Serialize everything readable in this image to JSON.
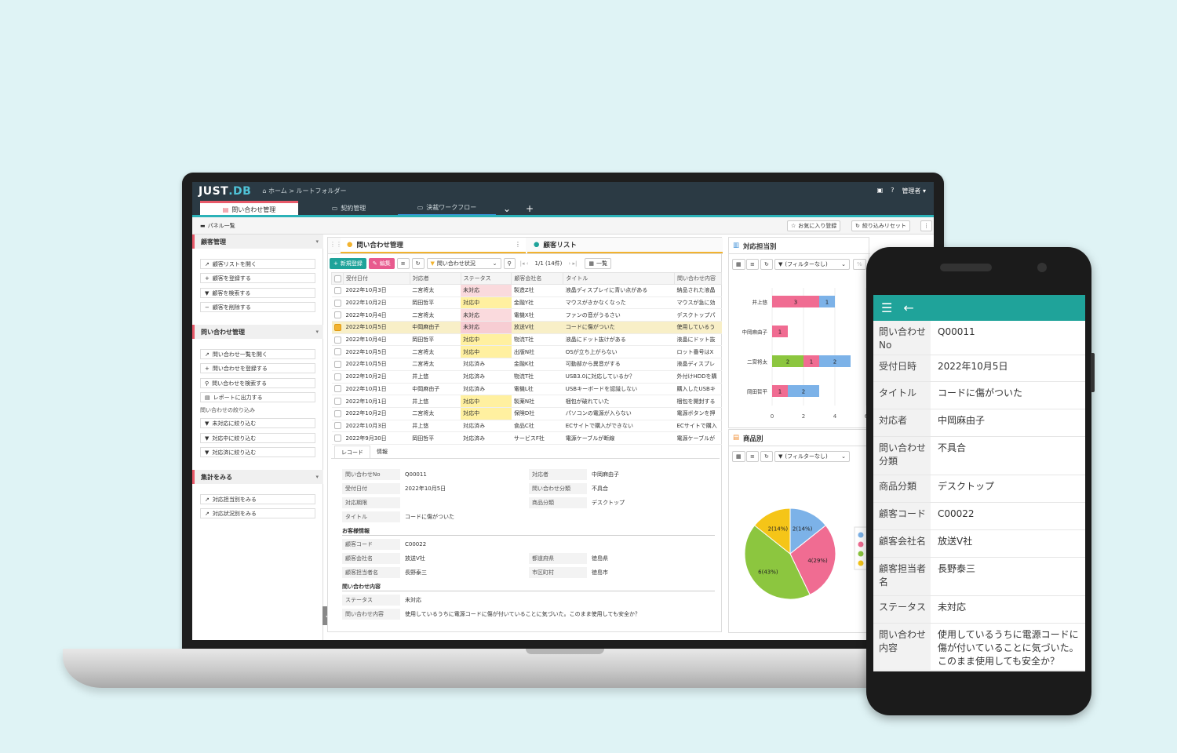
{
  "app": {
    "logo_prefix": "JUST",
    "logo_suffix": ".DB",
    "breadcrumb": "ホーム > ルートフォルダー",
    "user": "管理者"
  },
  "tabs": [
    {
      "label": "問い合わせ管理"
    },
    {
      "label": "契約管理"
    },
    {
      "label": "決裁ワークフロー"
    }
  ],
  "toolbar": {
    "panel_list": "パネル一覧",
    "favorite": "お気に入り登録",
    "reset": "絞り込みリセット"
  },
  "sidebar": {
    "sections": [
      {
        "title": "顧客管理",
        "items": [
          "顧客リストを開く",
          "顧客を登録する",
          "顧客を検索する",
          "顧客を削除する"
        ]
      },
      {
        "title": "問い合わせ管理",
        "items": [
          "問い合わせ一覧を開く",
          "問い合わせを登録する",
          "問い合わせを検索する",
          "レポートに出力する"
        ],
        "filter_label": "問い合わせの絞り込み",
        "filters": [
          "未対応に絞り込む",
          "対応中に絞り込む",
          "対応済に絞り込む"
        ]
      },
      {
        "title": "集計をみる",
        "items": [
          "対応担当別をみる",
          "対応状況別をみる"
        ]
      }
    ]
  },
  "main": {
    "tab1": "問い合わせ管理",
    "tab2": "顧客リスト",
    "new_btn": "新規登録",
    "edit_btn": "編集",
    "filter_select": "問い合わせ状況",
    "paging": "1/1 (14件)",
    "view_select": "一覧",
    "columns": [
      "受付日付",
      "対応者",
      "ステータス",
      "顧客会社名",
      "タイトル",
      "問い合わせ内容"
    ],
    "rows": [
      [
        "2022年10月3日",
        "二宮将太",
        "未対応",
        "製造Z社",
        "液晶ディスプレイに青い点がある",
        "納品された液晶"
      ],
      [
        "2022年10月2日",
        "岡田哲平",
        "対応中",
        "金融Y社",
        "マウスがきかなくなった",
        "マウスが急に効"
      ],
      [
        "2022年10月4日",
        "二宮将太",
        "未対応",
        "電機X社",
        "ファンの音がうるさい",
        "デスクトップパ"
      ],
      [
        "2022年10月5日",
        "中岡麻由子",
        "未対応",
        "放送V社",
        "コードに傷がついた",
        "使用しているう"
      ],
      [
        "2022年10月4日",
        "岡田哲平",
        "対応中",
        "物流T社",
        "液晶にドット抜けがある",
        "液晶にドット抜"
      ],
      [
        "2022年10月5日",
        "二宮将太",
        "対応中",
        "出版N社",
        "OSが立ち上がらない",
        "ロット番号はX"
      ],
      [
        "2022年10月5日",
        "二宮将太",
        "対応済み",
        "金融K社",
        "可動部から異音がする",
        "液晶ディスプレ"
      ],
      [
        "2022年10月2日",
        "井上悠",
        "対応済み",
        "物流T社",
        "USB3.0に対応しているか？",
        "外付けHDDを購"
      ],
      [
        "2022年10月1日",
        "中岡麻由子",
        "対応済み",
        "電機L社",
        "USBキーボードを認識しない",
        "購入したUSBキ"
      ],
      [
        "2022年10月1日",
        "井上悠",
        "対応中",
        "製薬N社",
        "梱包が破れていた",
        "梱包を開封する"
      ],
      [
        "2022年10月2日",
        "二宮将太",
        "対応中",
        "保険D社",
        "パソコンの電源が入らない",
        "電源ボタンを押"
      ],
      [
        "2022年10月3日",
        "井上悠",
        "対応済み",
        "食品C社",
        "ECサイトで購入ができない",
        "ECサイトで購入"
      ],
      [
        "2022年9月30日",
        "岡田哲平",
        "対応済み",
        "サービスF社",
        "電源ケーブルが断線",
        "電源ケーブルが"
      ]
    ],
    "detail": {
      "tab_record": "レコード",
      "tab_info": "情報",
      "inquiry_no_label": "問い合わせNo",
      "inquiry_no": "Q00011",
      "accept_date_label": "受付日付",
      "accept_date": "2022年10月5日",
      "deadline_label": "対応期限",
      "title_label": "タイトル",
      "title": "コードに傷がついた",
      "handler_label": "対応者",
      "handler": "中岡麻由子",
      "category_label": "問い合わせ分類",
      "category": "不具合",
      "product_label": "商品分類",
      "product": "デスクトップ",
      "customer_section": "お客様情報",
      "customer_code_label": "顧客コード",
      "customer_code": "C00022",
      "company_label": "顧客会社名",
      "company": "放送V社",
      "contact_label": "顧客担当者名",
      "contact": "長野泰三",
      "pref_label": "都道府県",
      "pref": "徳島県",
      "city_label": "市区町村",
      "city": "徳島市",
      "content_section": "問い合わせ内容",
      "status_label": "ステータス",
      "status": "未対応",
      "content_label": "問い合わせ内容",
      "content": "使用しているうちに電源コードに傷が付いていることに気づいた。このまま使用しても安全か？"
    }
  },
  "bar_panel": {
    "title": "対応担当別",
    "filter": "(フィルターなし)",
    "chart_data": {
      "type": "bar",
      "orientation": "horizontal",
      "stacked": true,
      "categories": [
        "井上悠",
        "中岡麻由子",
        "二宮将太",
        "岡田哲平"
      ],
      "series": [
        {
          "values": [
            0,
            0,
            2,
            0
          ],
          "color": "#8cc63f"
        },
        {
          "values": [
            3,
            1,
            1,
            1
          ],
          "color": "#f06c92"
        },
        {
          "values": [
            1,
            0,
            2,
            2
          ],
          "color": "#7cb2e8"
        }
      ],
      "ticks": [
        "0",
        "2",
        "4",
        "6"
      ],
      "xlim": [
        0,
        6
      ]
    }
  },
  "pie_panel": {
    "title": "商品別",
    "filter": "(フィルターなし)",
    "chart_data": {
      "type": "pie",
      "slices": [
        {
          "value": 2,
          "label": "2(14%)",
          "color": "#7cb2e8"
        },
        {
          "value": 4,
          "label": "4(29%)",
          "color": "#f06c92"
        },
        {
          "value": 6,
          "label": "6(43%)",
          "color": "#8cc63f"
        },
        {
          "value": 2,
          "label": "2(14%)",
          "color": "#f5c518"
        }
      ]
    }
  },
  "mobile": {
    "rows": [
      {
        "label": "問い合わせNo",
        "value": "Q00011"
      },
      {
        "label": "受付日時",
        "value": "2022年10月5日"
      },
      {
        "label": "タイトル",
        "value": "コードに傷がついた"
      },
      {
        "label": "対応者",
        "value": "中岡麻由子"
      },
      {
        "label": "問い合わせ分類",
        "value": "不具合"
      },
      {
        "label": "商品分類",
        "value": "デスクトップ"
      },
      {
        "label": "顧客コード",
        "value": "C00022"
      },
      {
        "label": "顧客会社名",
        "value": "放送V社"
      },
      {
        "label": "顧客担当者名",
        "value": "長野泰三"
      },
      {
        "label": "ステータス",
        "value": "未対応"
      },
      {
        "label": "問い合わせ内容",
        "value": "使用しているうちに電源コードに傷が付いていることに気づいた。このまま使用しても安全か？"
      }
    ]
  }
}
